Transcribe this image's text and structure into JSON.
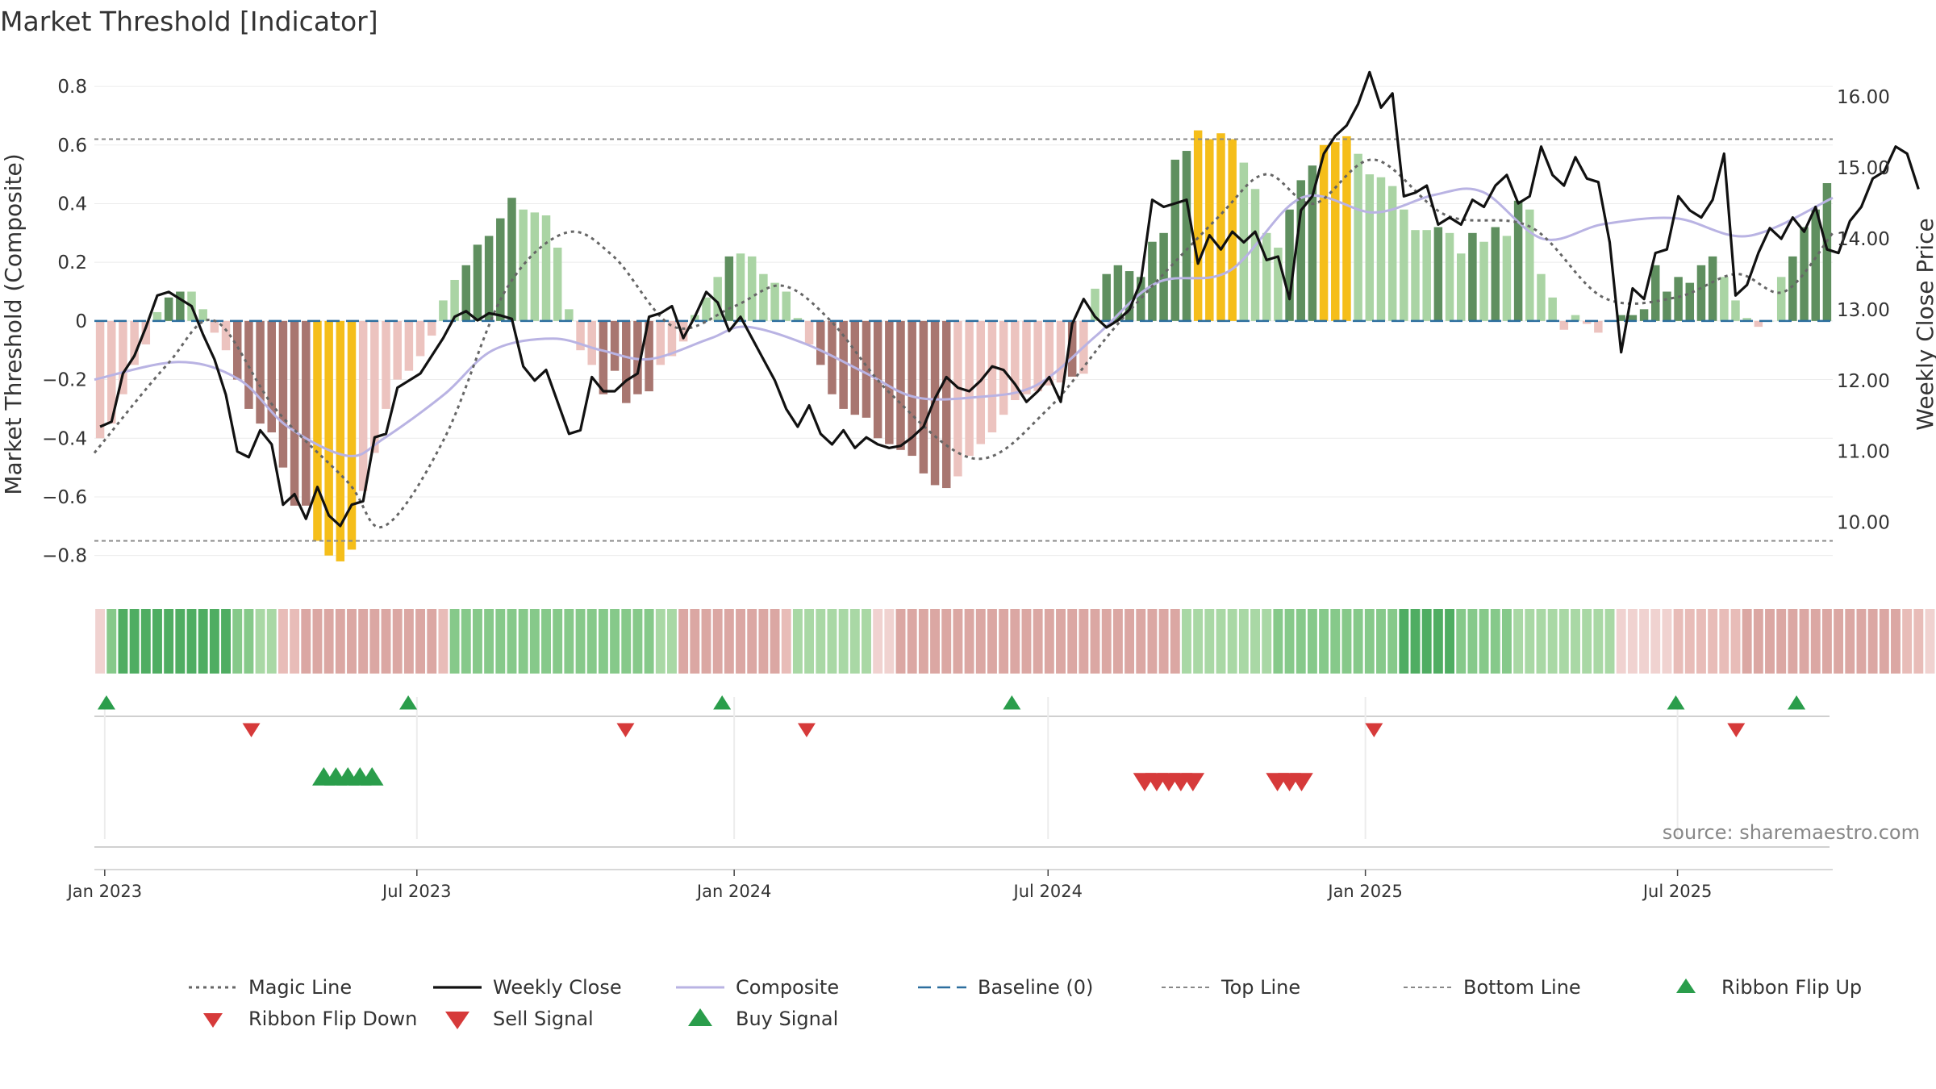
{
  "title": "Market Threshold [Indicator]",
  "source": "source: sharemaestro.com",
  "colors": {
    "strong_green": "#5f8f5f",
    "light_green": "#aad4a4",
    "strong_red": "#a87670",
    "light_red": "#ecc3bf",
    "gold": "#f5be1a",
    "weekly_close": "#111111",
    "composite": "#b9b3e3",
    "magic": "#666666",
    "baseline": "#2c6e9e",
    "threshold_lines": "#888888",
    "buy": "#2a9d4b",
    "sell": "#d63a3a"
  },
  "chart_data": {
    "type": "bar",
    "title": "Market Threshold [Indicator]",
    "ylabel_left": "Market Threshold (Composite)",
    "ylabel_right": "Weekly Close Price",
    "ylim_left": [
      -0.9,
      0.88
    ],
    "ylim_right": [
      9.12,
      16.48
    ],
    "yticks_left": [
      {
        "v": 0.8,
        "label": "0.8"
      },
      {
        "v": 0.6,
        "label": "0.6"
      },
      {
        "v": 0.4,
        "label": "0.4"
      },
      {
        "v": 0.2,
        "label": "0.2"
      },
      {
        "v": 0,
        "label": "0"
      },
      {
        "v": -0.2,
        "label": "−0.2"
      },
      {
        "v": -0.4,
        "label": "−0.4"
      },
      {
        "v": -0.6,
        "label": "−0.6"
      },
      {
        "v": -0.8,
        "label": "−0.8"
      }
    ],
    "yticks_right": [
      {
        "v": 16,
        "label": "16.00"
      },
      {
        "v": 15,
        "label": "15.00"
      },
      {
        "v": 14,
        "label": "14.00"
      },
      {
        "v": 13,
        "label": "13.00"
      },
      {
        "v": 12,
        "label": "12.00"
      },
      {
        "v": 11,
        "label": "11.00"
      },
      {
        "v": 10,
        "label": "10.00"
      }
    ],
    "x_start": "2022-12-26",
    "x_end": "2025-09-29",
    "xticks": [
      {
        "date": "2023-01-01",
        "label": "Jan 2023"
      },
      {
        "date": "2023-07-01",
        "label": "Jul 2023"
      },
      {
        "date": "2024-01-01",
        "label": "Jan 2024"
      },
      {
        "date": "2024-07-01",
        "label": "Jul 2024"
      },
      {
        "date": "2025-01-01",
        "label": "Jan 2025"
      },
      {
        "date": "2025-07-01",
        "label": "Jul 2025"
      }
    ],
    "top_line": 0.62,
    "bottom_line": -0.75,
    "baseline": 0,
    "composite_key": [
      [
        "2022-12-26",
        -0.2
      ],
      [
        "2023-02-13",
        -0.14
      ],
      [
        "2023-03-20",
        -0.2
      ],
      [
        "2023-04-17",
        -0.36
      ],
      [
        "2023-05-22",
        -0.46
      ],
      [
        "2023-06-12",
        -0.4
      ],
      [
        "2023-07-17",
        -0.25
      ],
      [
        "2023-08-14",
        -0.1
      ],
      [
        "2023-09-18",
        -0.06
      ],
      [
        "2023-10-16",
        -0.1
      ],
      [
        "2023-11-13",
        -0.13
      ],
      [
        "2023-12-18",
        -0.06
      ],
      [
        "2024-01-08",
        -0.02
      ],
      [
        "2024-02-12",
        -0.08
      ],
      [
        "2024-03-18",
        -0.18
      ],
      [
        "2024-04-15",
        -0.26
      ],
      [
        "2024-05-20",
        -0.26
      ],
      [
        "2024-06-24",
        -0.22
      ],
      [
        "2024-07-29",
        -0.05
      ],
      [
        "2024-09-02",
        0.13
      ],
      [
        "2024-10-14",
        0.17
      ],
      [
        "2024-11-25",
        0.42
      ],
      [
        "2025-01-06",
        0.37
      ],
      [
        "2025-02-10",
        0.43
      ],
      [
        "2025-03-10",
        0.44
      ],
      [
        "2025-04-14",
        0.28
      ],
      [
        "2025-05-19",
        0.33
      ],
      [
        "2025-06-30",
        0.35
      ],
      [
        "2025-08-11",
        0.29
      ],
      [
        "2025-09-29",
        0.42
      ]
    ],
    "magic_key": [
      [
        "2022-12-26",
        -0.45
      ],
      [
        "2023-02-06",
        -0.15
      ],
      [
        "2023-03-06",
        0.0
      ],
      [
        "2023-04-10",
        -0.3
      ],
      [
        "2023-05-22",
        -0.55
      ],
      [
        "2023-06-12",
        -0.7
      ],
      [
        "2023-07-17",
        -0.4
      ],
      [
        "2023-08-21",
        0.1
      ],
      [
        "2023-09-25",
        0.3
      ],
      [
        "2023-10-23",
        0.22
      ],
      [
        "2023-11-27",
        -0.02
      ],
      [
        "2024-01-01",
        0.05
      ],
      [
        "2024-01-29",
        0.12
      ],
      [
        "2024-02-26",
        0.0
      ],
      [
        "2024-04-01",
        -0.25
      ],
      [
        "2024-05-20",
        -0.47
      ],
      [
        "2024-07-01",
        -0.3
      ],
      [
        "2024-08-12",
        0.0
      ],
      [
        "2024-10-07",
        0.35
      ],
      [
        "2024-11-04",
        0.5
      ],
      [
        "2024-12-02",
        0.4
      ],
      [
        "2025-01-06",
        0.55
      ],
      [
        "2025-02-17",
        0.36
      ],
      [
        "2025-04-07",
        0.32
      ],
      [
        "2025-05-19",
        0.08
      ],
      [
        "2025-06-30",
        0.08
      ],
      [
        "2025-08-04",
        0.16
      ],
      [
        "2025-09-01",
        0.1
      ],
      [
        "2025-09-29",
        0.3
      ]
    ],
    "bars": [
      [
        -0.4,
        "lr"
      ],
      [
        -0.35,
        "lr"
      ],
      [
        -0.25,
        "lr"
      ],
      [
        -0.15,
        "lr"
      ],
      [
        -0.08,
        "lr"
      ],
      [
        0.03,
        "lg"
      ],
      [
        0.08,
        "sg"
      ],
      [
        0.1,
        "sg"
      ],
      [
        0.1,
        "lg"
      ],
      [
        0.04,
        "lg"
      ],
      [
        -0.04,
        "lr"
      ],
      [
        -0.1,
        "lr"
      ],
      [
        -0.2,
        "sr"
      ],
      [
        -0.3,
        "sr"
      ],
      [
        -0.35,
        "sr"
      ],
      [
        -0.38,
        "sr"
      ],
      [
        -0.5,
        "sr"
      ],
      [
        -0.63,
        "sr"
      ],
      [
        -0.63,
        "sr"
      ],
      [
        -0.75,
        "gd"
      ],
      [
        -0.8,
        "gd"
      ],
      [
        -0.82,
        "gd"
      ],
      [
        -0.78,
        "gd"
      ],
      [
        -0.58,
        "lr"
      ],
      [
        -0.45,
        "lr"
      ],
      [
        -0.3,
        "lr"
      ],
      [
        -0.2,
        "lr"
      ],
      [
        -0.17,
        "lr"
      ],
      [
        -0.12,
        "lr"
      ],
      [
        -0.05,
        "lr"
      ],
      [
        0.07,
        "lg"
      ],
      [
        0.14,
        "lg"
      ],
      [
        0.19,
        "sg"
      ],
      [
        0.26,
        "sg"
      ],
      [
        0.29,
        "sg"
      ],
      [
        0.35,
        "sg"
      ],
      [
        0.42,
        "sg"
      ],
      [
        0.38,
        "lg"
      ],
      [
        0.37,
        "lg"
      ],
      [
        0.36,
        "lg"
      ],
      [
        0.25,
        "lg"
      ],
      [
        0.04,
        "lg"
      ],
      [
        -0.1,
        "lr"
      ],
      [
        -0.15,
        "lr"
      ],
      [
        -0.25,
        "sr"
      ],
      [
        -0.17,
        "sr"
      ],
      [
        -0.28,
        "sr"
      ],
      [
        -0.25,
        "sr"
      ],
      [
        -0.24,
        "sr"
      ],
      [
        -0.15,
        "lr"
      ],
      [
        -0.12,
        "lr"
      ],
      [
        -0.07,
        "lr"
      ],
      [
        0.02,
        "lg"
      ],
      [
        0.08,
        "lg"
      ],
      [
        0.15,
        "lg"
      ],
      [
        0.22,
        "sg"
      ],
      [
        0.23,
        "lg"
      ],
      [
        0.22,
        "lg"
      ],
      [
        0.16,
        "lg"
      ],
      [
        0.13,
        "lg"
      ],
      [
        0.1,
        "lg"
      ],
      [
        0.01,
        "lg"
      ],
      [
        -0.08,
        "lr"
      ],
      [
        -0.15,
        "sr"
      ],
      [
        -0.25,
        "sr"
      ],
      [
        -0.3,
        "sr"
      ],
      [
        -0.32,
        "sr"
      ],
      [
        -0.33,
        "sr"
      ],
      [
        -0.4,
        "sr"
      ],
      [
        -0.42,
        "sr"
      ],
      [
        -0.44,
        "sr"
      ],
      [
        -0.46,
        "sr"
      ],
      [
        -0.52,
        "sr"
      ],
      [
        -0.56,
        "sr"
      ],
      [
        -0.57,
        "sr"
      ],
      [
        -0.53,
        "lr"
      ],
      [
        -0.46,
        "lr"
      ],
      [
        -0.42,
        "lr"
      ],
      [
        -0.38,
        "lr"
      ],
      [
        -0.32,
        "lr"
      ],
      [
        -0.27,
        "lr"
      ],
      [
        -0.25,
        "lr"
      ],
      [
        -0.24,
        "lr"
      ],
      [
        -0.22,
        "lr"
      ],
      [
        -0.21,
        "lr"
      ],
      [
        -0.19,
        "sr"
      ],
      [
        -0.18,
        "lr"
      ],
      [
        0.11,
        "lg"
      ],
      [
        0.16,
        "sg"
      ],
      [
        0.19,
        "sg"
      ],
      [
        0.17,
        "sg"
      ],
      [
        0.15,
        "sg"
      ],
      [
        0.27,
        "sg"
      ],
      [
        0.3,
        "sg"
      ],
      [
        0.55,
        "sg"
      ],
      [
        0.58,
        "sg"
      ],
      [
        0.65,
        "gd"
      ],
      [
        0.62,
        "gd"
      ],
      [
        0.64,
        "gd"
      ],
      [
        0.62,
        "gd"
      ],
      [
        0.54,
        "lg"
      ],
      [
        0.45,
        "lg"
      ],
      [
        0.3,
        "lg"
      ],
      [
        0.25,
        "lg"
      ],
      [
        0.38,
        "sg"
      ],
      [
        0.48,
        "sg"
      ],
      [
        0.53,
        "sg"
      ],
      [
        0.6,
        "gd"
      ],
      [
        0.61,
        "gd"
      ],
      [
        0.63,
        "gd"
      ],
      [
        0.57,
        "lg"
      ],
      [
        0.5,
        "lg"
      ],
      [
        0.49,
        "lg"
      ],
      [
        0.46,
        "lg"
      ],
      [
        0.38,
        "lg"
      ],
      [
        0.31,
        "lg"
      ],
      [
        0.31,
        "lg"
      ],
      [
        0.32,
        "sg"
      ],
      [
        0.3,
        "lg"
      ],
      [
        0.23,
        "lg"
      ],
      [
        0.3,
        "sg"
      ],
      [
        0.27,
        "lg"
      ],
      [
        0.32,
        "sg"
      ],
      [
        0.29,
        "lg"
      ],
      [
        0.41,
        "sg"
      ],
      [
        0.38,
        "lg"
      ],
      [
        0.16,
        "lg"
      ],
      [
        0.08,
        "lg"
      ],
      [
        -0.03,
        "lr"
      ],
      [
        0.02,
        "lg"
      ],
      [
        -0.01,
        "lr"
      ],
      [
        -0.04,
        "lr"
      ],
      [
        0.0,
        "lg"
      ],
      [
        0.02,
        "sg"
      ],
      [
        0.02,
        "sg"
      ],
      [
        0.04,
        "sg"
      ],
      [
        0.19,
        "sg"
      ],
      [
        0.1,
        "sg"
      ],
      [
        0.15,
        "sg"
      ],
      [
        0.13,
        "sg"
      ],
      [
        0.19,
        "sg"
      ],
      [
        0.22,
        "sg"
      ],
      [
        0.15,
        "lg"
      ],
      [
        0.07,
        "lg"
      ],
      [
        0.01,
        "lg"
      ],
      [
        -0.02,
        "lr"
      ],
      [
        0.0,
        "lg"
      ],
      [
        0.15,
        "lg"
      ],
      [
        0.22,
        "sg"
      ],
      [
        0.32,
        "sg"
      ],
      [
        0.38,
        "sg"
      ],
      [
        0.47,
        "sg"
      ]
    ],
    "weekly_close": [
      11.35,
      11.42,
      12.1,
      12.35,
      12.75,
      13.2,
      13.25,
      13.15,
      13.05,
      12.65,
      12.3,
      11.8,
      11.0,
      10.92,
      11.3,
      11.1,
      10.25,
      10.4,
      10.05,
      10.5,
      10.1,
      9.95,
      10.25,
      10.3,
      11.2,
      11.25,
      11.9,
      12.0,
      12.1,
      12.35,
      12.6,
      12.9,
      12.98,
      12.85,
      12.95,
      12.92,
      12.87,
      12.2,
      12.0,
      12.15,
      11.7,
      11.25,
      11.3,
      12.05,
      11.85,
      11.85,
      12.0,
      12.1,
      12.9,
      12.95,
      13.05,
      12.6,
      12.9,
      13.25,
      13.1,
      12.7,
      12.9,
      12.6,
      12.3,
      12.0,
      11.6,
      11.35,
      11.65,
      11.25,
      11.1,
      11.3,
      11.05,
      11.2,
      11.1,
      11.05,
      11.08,
      11.2,
      11.35,
      11.75,
      12.05,
      11.9,
      11.85,
      12.0,
      12.2,
      12.15,
      11.95,
      11.7,
      11.85,
      12.05,
      11.7,
      12.8,
      13.15,
      12.9,
      12.75,
      12.85,
      13.0,
      13.4,
      14.55,
      14.45,
      14.5,
      14.55,
      13.65,
      14.05,
      13.85,
      14.1,
      13.95,
      14.1,
      13.7,
      13.75,
      13.15,
      14.4,
      14.6,
      15.2,
      15.45,
      15.6,
      15.9,
      16.35,
      15.85,
      16.05,
      14.6,
      14.65,
      14.75,
      14.2,
      14.3,
      14.2,
      14.55,
      14.45,
      14.75,
      14.9,
      14.5,
      14.6,
      15.3,
      14.9,
      14.75,
      15.15,
      14.85,
      14.8,
      13.95,
      12.4,
      13.3,
      13.15,
      13.8,
      13.85,
      14.6,
      14.4,
      14.3,
      14.55,
      15.2,
      13.2,
      13.35,
      13.8,
      14.15,
      14.0,
      14.3,
      14.1,
      14.45,
      13.85,
      13.8,
      14.25,
      14.45,
      14.85,
      14.95,
      15.3,
      15.2,
      14.7
    ],
    "ribbon": [
      "lr1",
      "g2",
      "g3",
      "g3",
      "g3",
      "g3",
      "g3",
      "g3",
      "g3",
      "g3",
      "g3",
      "g3",
      "g2",
      "g2",
      "g1",
      "g1",
      "r1",
      "r1",
      "r2",
      "r2",
      "r2",
      "r2",
      "r2",
      "r2",
      "r2",
      "r2",
      "r2",
      "r2",
      "r2",
      "r2",
      "r1",
      "g2",
      "g2",
      "g2",
      "g2",
      "g2",
      "g2",
      "g2",
      "g2",
      "g2",
      "g2",
      "g2",
      "g2",
      "g2",
      "g2",
      "g2",
      "g2",
      "g2",
      "g2",
      "g1",
      "g1",
      "r2",
      "r2",
      "r2",
      "r2",
      "r2",
      "r2",
      "r2",
      "r2",
      "r2",
      "r1",
      "g1",
      "g1",
      "g1",
      "g1",
      "g1",
      "g1",
      "g1",
      "lr1",
      "lr1",
      "r2",
      "r2",
      "r2",
      "r2",
      "r2",
      "r2",
      "r2",
      "r2",
      "r2",
      "r2",
      "r2",
      "r2",
      "r2",
      "r2",
      "r2",
      "r2",
      "r2",
      "r2",
      "r2",
      "r2",
      "r2",
      "r2",
      "r2",
      "r2",
      "r2",
      "g1",
      "g1",
      "g1",
      "g1",
      "g1",
      "g1",
      "g1",
      "g1",
      "g2",
      "g2",
      "g2",
      "g2",
      "g2",
      "g2",
      "g2",
      "g2",
      "g2",
      "g2",
      "g2",
      "g3",
      "g3",
      "g3",
      "g3",
      "g3",
      "g2",
      "g2",
      "g2",
      "g2",
      "g2",
      "g1",
      "g1",
      "g1",
      "g1",
      "g1",
      "g1",
      "g1",
      "g1",
      "g1",
      "lr1",
      "lr1",
      "lr1",
      "lr1",
      "lr1",
      "r1",
      "r1",
      "r1",
      "r1",
      "r1",
      "r1",
      "r2",
      "r2",
      "r2",
      "r2",
      "r2",
      "r2",
      "r2",
      "r2",
      "r2",
      "r2",
      "r2",
      "r2",
      "r2",
      "r2",
      "r1",
      "r1",
      "lr1",
      "lr1",
      "g0",
      "g0",
      "g0",
      "g0",
      "g0",
      "g0",
      "g0",
      "g0",
      "lr1",
      "lr1",
      "lr1",
      "g1",
      "g1",
      "g1",
      "g1",
      "g1"
    ],
    "ribbon_colors": {
      "g0": "#d4ecd1",
      "g1": "#a9d8a5",
      "g2": "#86c98a",
      "g3": "#4fad62",
      "lr1": "#f0d2d0",
      "r1": "#e8bcb8",
      "r2": "#dba7a3"
    },
    "ribbon_flip_up": [
      "2023-01-02",
      "2023-06-26",
      "2023-12-25",
      "2024-06-10",
      "2025-06-30",
      "2025-09-08"
    ],
    "ribbon_flip_down": [
      "2023-03-27",
      "2023-10-30",
      "2024-02-12",
      "2025-01-06",
      "2025-08-04"
    ],
    "buy_signal": [
      "2023-05-08",
      "2023-05-15",
      "2023-05-22",
      "2023-05-29",
      "2023-06-05"
    ],
    "sell_signal": [
      "2024-08-26",
      "2024-09-02",
      "2024-09-09",
      "2024-09-16",
      "2024-09-23",
      "2024-11-11",
      "2024-11-18",
      "2024-11-25"
    ],
    "legend": [
      {
        "label": "Magic Line",
        "kind": "magic"
      },
      {
        "label": "Weekly Close",
        "kind": "close"
      },
      {
        "label": "Composite",
        "kind": "composite"
      },
      {
        "label": "Baseline (0)",
        "kind": "baseline"
      },
      {
        "label": "Top Line",
        "kind": "topline"
      },
      {
        "label": "Bottom Line",
        "kind": "bottomline"
      },
      {
        "label": "Ribbon Flip Up",
        "kind": "flipup"
      },
      {
        "label": "Ribbon Flip Down",
        "kind": "flipdown"
      },
      {
        "label": "Sell Signal",
        "kind": "sell"
      },
      {
        "label": "Buy Signal",
        "kind": "buy"
      }
    ]
  }
}
